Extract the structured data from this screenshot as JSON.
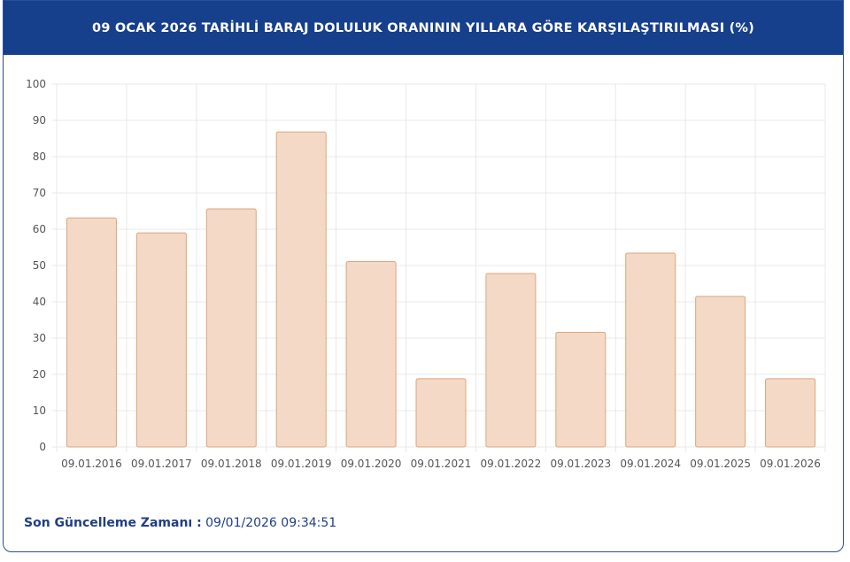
{
  "header": {
    "title": "09 OCAK 2026 TARİHLİ BARAJ DOLULUK ORANININ YILLARA GÖRE KARŞILAŞTIRILMASI (%)"
  },
  "footer": {
    "label": "Son Güncelleme Zamanı :",
    "value": "09/01/2026 09:34:51"
  },
  "colors": {
    "header_bg": "#163f8c",
    "bar_fill": "#f3d9c6",
    "bar_stroke": "#dda57c",
    "grid": "#e8e8e8",
    "tick_text": "#555555",
    "footer_text": "#1f3f86"
  },
  "chart_data": {
    "type": "bar",
    "categories": [
      "09.01.2016",
      "09.01.2017",
      "09.01.2018",
      "09.01.2019",
      "09.01.2020",
      "09.01.2021",
      "09.01.2022",
      "09.01.2023",
      "09.01.2024",
      "09.01.2025",
      "09.01.2026"
    ],
    "values": [
      63.1,
      59.0,
      65.6,
      86.8,
      51.1,
      18.8,
      47.8,
      31.6,
      53.4,
      41.5,
      18.8
    ],
    "ylim": [
      0,
      100
    ],
    "yticks": [
      "0",
      "10",
      "20",
      "30",
      "40",
      "50",
      "60",
      "70",
      "80",
      "90",
      "100"
    ],
    "grid": true,
    "legend": false
  }
}
